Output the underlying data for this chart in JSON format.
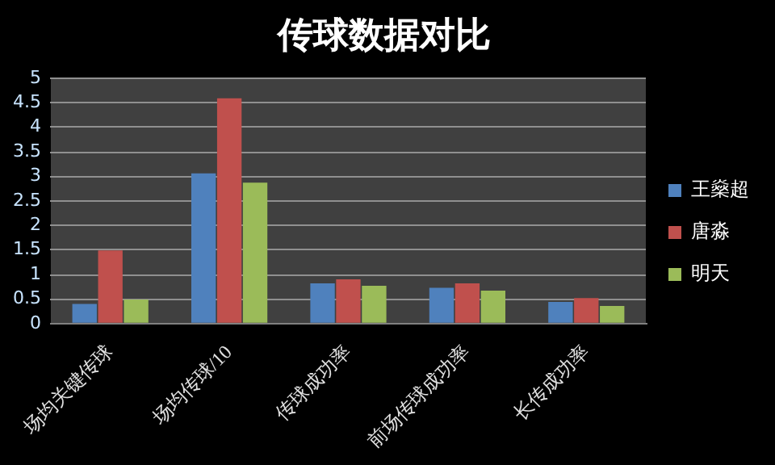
{
  "chart_data": {
    "type": "bar",
    "title": "传球数据对比",
    "categories": [
      "场均关键传球",
      "场均传球/10",
      "传球成功率",
      "前场传球成功率",
      "长传成功率"
    ],
    "series": [
      {
        "name": "王燊超",
        "color": "#4f81bd",
        "values": [
          0.4,
          3.06,
          0.82,
          0.73,
          0.44
        ]
      },
      {
        "name": "唐淼",
        "color": "#c0504d",
        "values": [
          1.49,
          4.59,
          0.9,
          0.82,
          0.52
        ]
      },
      {
        "name": "明天",
        "color": "#9bbb59",
        "values": [
          0.49,
          2.87,
          0.77,
          0.67,
          0.36
        ]
      }
    ],
    "ylim": [
      0,
      5
    ],
    "yticks": [
      0,
      0.5,
      1,
      1.5,
      2,
      2.5,
      3,
      3.5,
      4,
      4.5,
      5
    ],
    "grid": "y",
    "legend": "right"
  }
}
